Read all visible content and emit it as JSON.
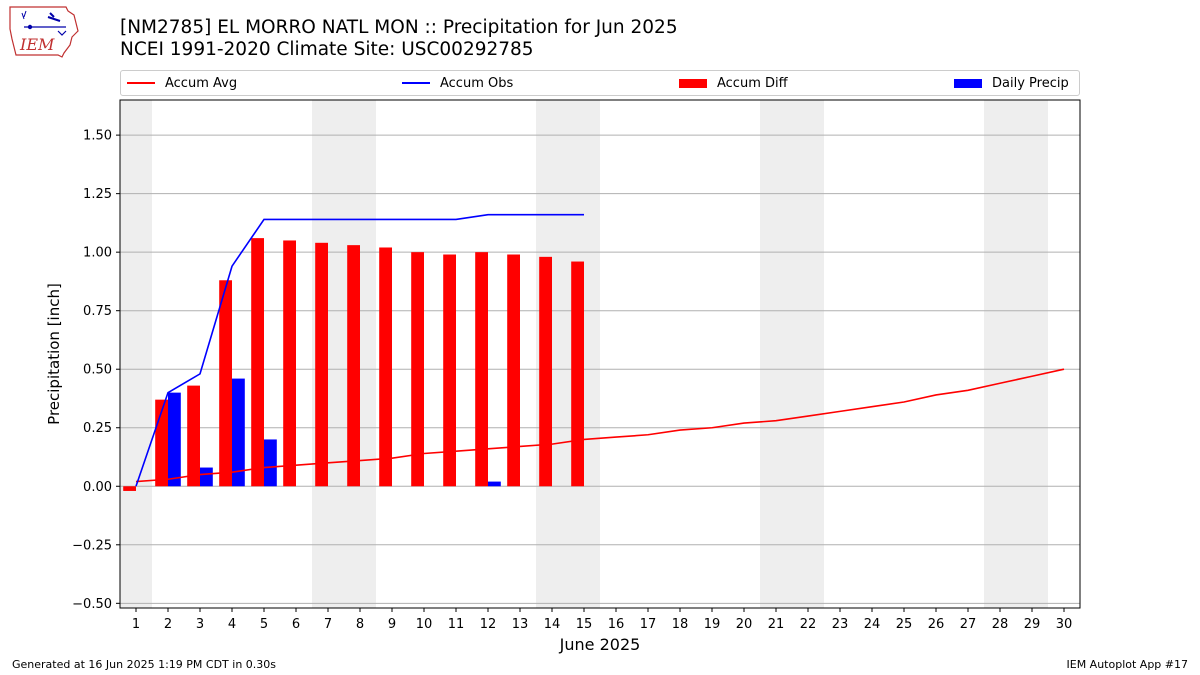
{
  "logo": {
    "text": "IEM"
  },
  "header": {
    "title_line1": "[NM2785] EL MORRO NATL MON :: Precipitation for Jun 2025",
    "title_line2": "NCEI 1991-2020 Climate Site: USC00292785"
  },
  "footer": {
    "generated": "Generated at 16 Jun 2025 1:19 PM CDT in 0.30s",
    "app": "IEM Autoplot App #17"
  },
  "colors": {
    "accum_avg": "#ff0000",
    "accum_obs": "#0000ff",
    "accum_diff": "#ff0000",
    "daily_precip": "#0000ff",
    "weekend_shade": "#eeeeee",
    "grid": "#b0b0b0"
  },
  "chart_data": {
    "type": "bar",
    "xlabel": "June 2025",
    "ylabel": "Precipitation [inch]",
    "ylim": [
      -0.52,
      1.65
    ],
    "yticks": [
      -0.5,
      -0.25,
      0.0,
      0.25,
      0.5,
      0.75,
      1.0,
      1.25,
      1.5
    ],
    "ytick_labels": [
      "−0.50",
      "−0.25",
      "0.00",
      "0.25",
      "0.50",
      "0.75",
      "1.00",
      "1.25",
      "1.50"
    ],
    "grid": "horizontal",
    "legend_position": "top",
    "x": [
      1,
      2,
      3,
      4,
      5,
      6,
      7,
      8,
      9,
      10,
      11,
      12,
      13,
      14,
      15,
      16,
      17,
      18,
      19,
      20,
      21,
      22,
      23,
      24,
      25,
      26,
      27,
      28,
      29,
      30
    ],
    "weekend_days": [
      1,
      7,
      8,
      14,
      15,
      21,
      22,
      28,
      29
    ],
    "series": [
      {
        "name": "Accum Avg",
        "kind": "line",
        "x": [
          1,
          2,
          3,
          4,
          5,
          6,
          7,
          8,
          9,
          10,
          11,
          12,
          13,
          14,
          15,
          16,
          17,
          18,
          19,
          20,
          21,
          22,
          23,
          24,
          25,
          26,
          27,
          28,
          29,
          30
        ],
        "values": [
          0.02,
          0.03,
          0.05,
          0.06,
          0.08,
          0.09,
          0.1,
          0.11,
          0.12,
          0.14,
          0.15,
          0.16,
          0.17,
          0.18,
          0.2,
          0.21,
          0.22,
          0.24,
          0.25,
          0.27,
          0.28,
          0.3,
          0.32,
          0.34,
          0.36,
          0.39,
          0.41,
          0.44,
          0.47,
          0.5
        ]
      },
      {
        "name": "Accum Obs",
        "kind": "line",
        "x": [
          1,
          2,
          3,
          4,
          5,
          6,
          7,
          8,
          9,
          10,
          11,
          12,
          13,
          14,
          15
        ],
        "values": [
          0.0,
          0.4,
          0.48,
          0.94,
          1.14,
          1.14,
          1.14,
          1.14,
          1.14,
          1.14,
          1.14,
          1.16,
          1.16,
          1.16,
          1.16
        ]
      },
      {
        "name": "Accum Diff",
        "kind": "bar",
        "x": [
          1,
          2,
          3,
          4,
          5,
          6,
          7,
          8,
          9,
          10,
          11,
          12,
          13,
          14,
          15
        ],
        "values": [
          -0.02,
          0.37,
          0.43,
          0.88,
          1.06,
          1.05,
          1.04,
          1.03,
          1.02,
          1.0,
          0.99,
          1.0,
          0.99,
          0.98,
          0.96
        ]
      },
      {
        "name": "Daily Precip",
        "kind": "bar",
        "x": [
          1,
          2,
          3,
          4,
          5,
          6,
          7,
          8,
          9,
          10,
          11,
          12,
          13,
          14,
          15
        ],
        "values": [
          0.0,
          0.4,
          0.08,
          0.46,
          0.2,
          0.0,
          0.0,
          0.0,
          0.0,
          0.0,
          0.0,
          0.02,
          0.0,
          0.0,
          0.0
        ]
      }
    ]
  }
}
